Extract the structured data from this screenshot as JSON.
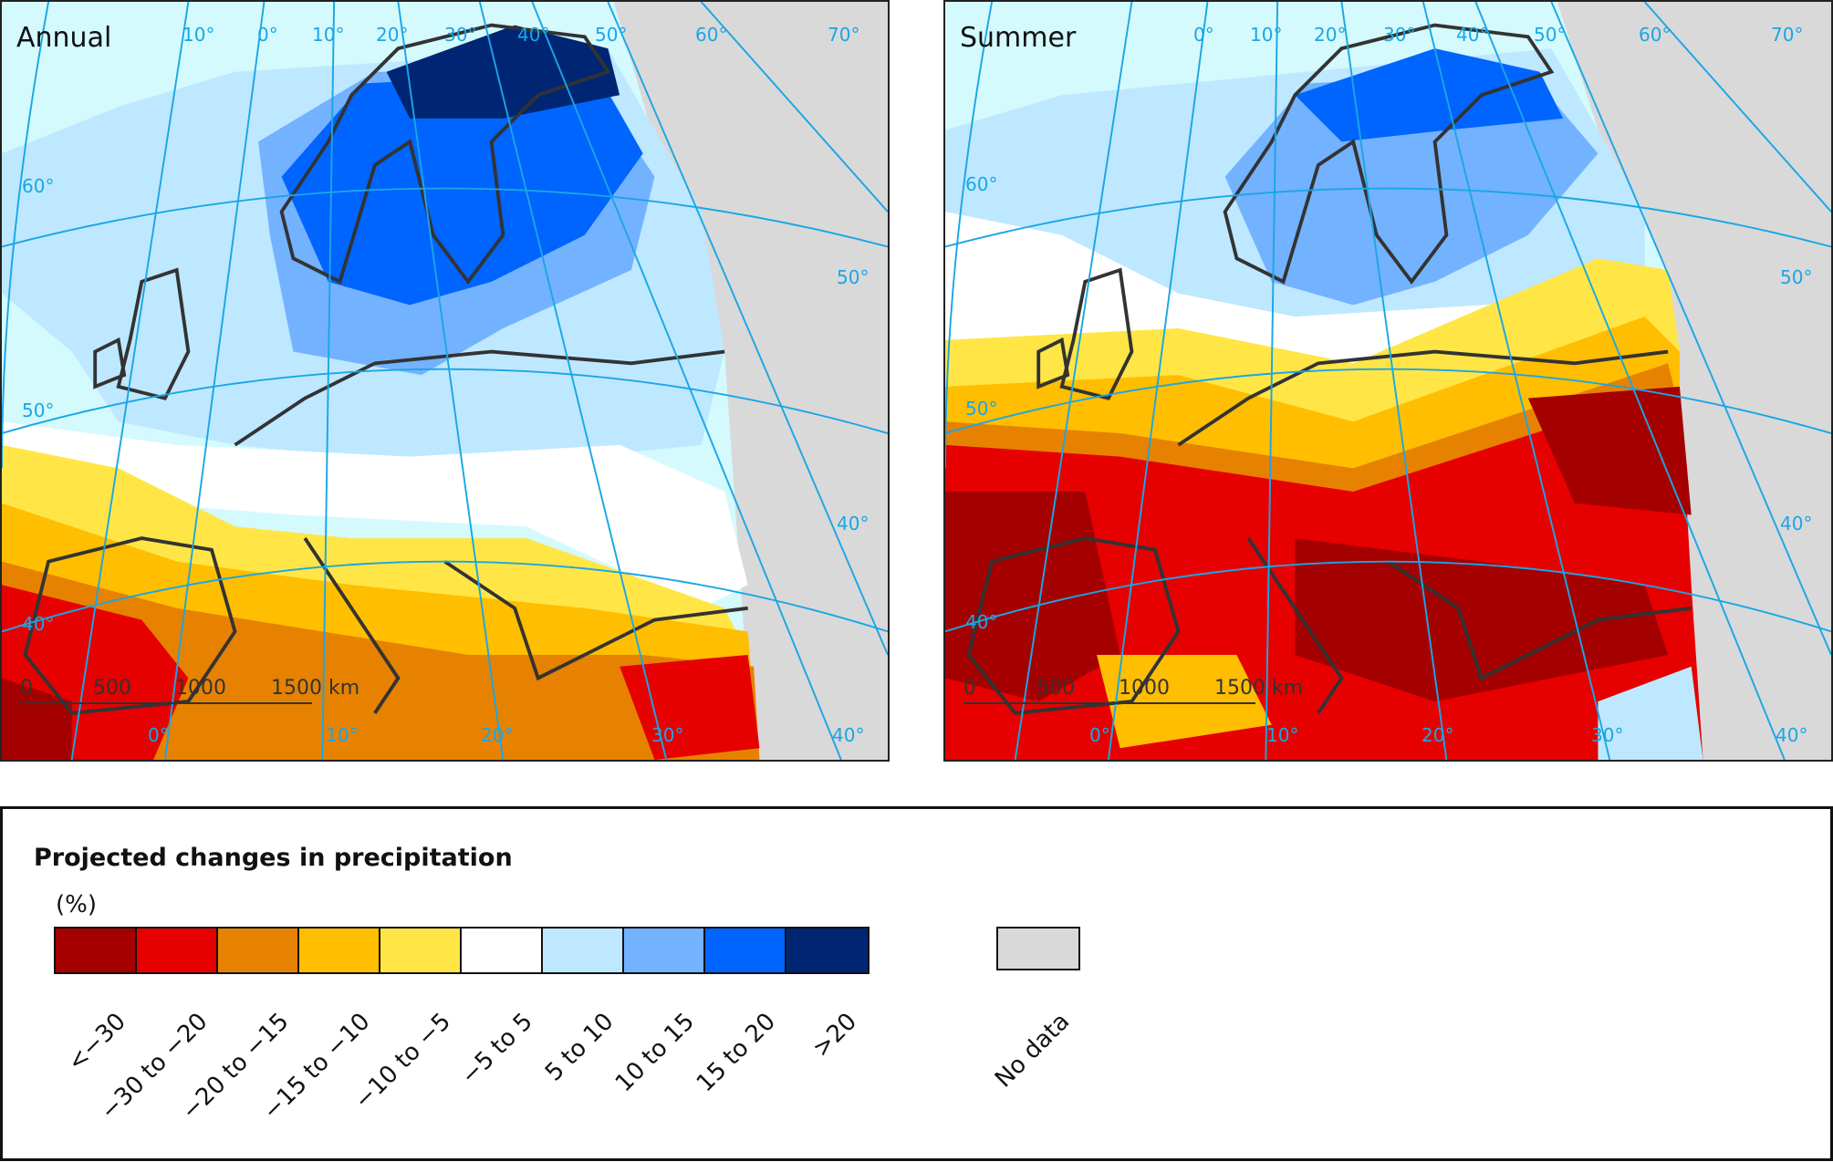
{
  "maps": [
    {
      "title": "Annual",
      "lon_labels_top": [
        "10°",
        "0°",
        "10°",
        "20°",
        "30°",
        "40°",
        "50°",
        "60°",
        "70°"
      ],
      "lat_labels_left": [
        "60°",
        "50°",
        "40°"
      ],
      "lat_labels_right": [
        "50°",
        "40°"
      ],
      "lon_labels_bottom": [
        "0°",
        "10°",
        "20°",
        "30°",
        "40°"
      ],
      "scale_bar": [
        "0",
        "500",
        "1000",
        "1500 km"
      ]
    },
    {
      "title": "Summer",
      "lon_labels_top": [
        "0°",
        "10°",
        "20°",
        "30°",
        "40°",
        "50°",
        "60°",
        "70°"
      ],
      "lat_labels_left": [
        "60°",
        "50°",
        "40°"
      ],
      "lat_labels_right": [
        "50°",
        "40°"
      ],
      "lon_labels_bottom": [
        "0°",
        "10°",
        "20°",
        "30°",
        "40°"
      ],
      "scale_bar": [
        "0",
        "500",
        "1000",
        "1500 km"
      ]
    }
  ],
  "legend": {
    "title": "Projected changes in precipitation",
    "unit": "(%)",
    "classes": [
      {
        "label": "<−30",
        "color": "#a50000"
      },
      {
        "label": "−30 to −20",
        "color": "#e60000"
      },
      {
        "label": "−20 to −15",
        "color": "#e68200"
      },
      {
        "label": "−15 to −10",
        "color": "#ffbe00"
      },
      {
        "label": "−10 to −5",
        "color": "#ffe646"
      },
      {
        "label": "−5 to 5",
        "color": "#ffffff"
      },
      {
        "label": "5 to 10",
        "color": "#bee8ff"
      },
      {
        "label": "10 to 15",
        "color": "#73b2ff"
      },
      {
        "label": "15 to 20",
        "color": "#0064ff"
      },
      {
        "label": ">20",
        "color": "#002673"
      }
    ],
    "no_data": {
      "label": "No data",
      "color": "#d9d9d9"
    }
  },
  "colors": {
    "graticule": "#1aa6e6",
    "coastline": "#333333",
    "sea": "#d4fafd"
  }
}
